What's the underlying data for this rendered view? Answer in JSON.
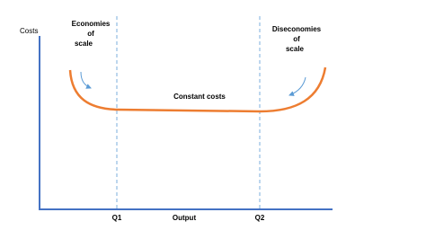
{
  "axes": {
    "y_label": "Costs",
    "x_label": "Output"
  },
  "markers": [
    "Q1",
    "Q2"
  ],
  "annotations": {
    "economies": [
      "Economies",
      "of",
      "scale"
    ],
    "constant": "Constant costs",
    "diseconomies": [
      "Diseconomies",
      "of",
      "scale"
    ]
  }
}
